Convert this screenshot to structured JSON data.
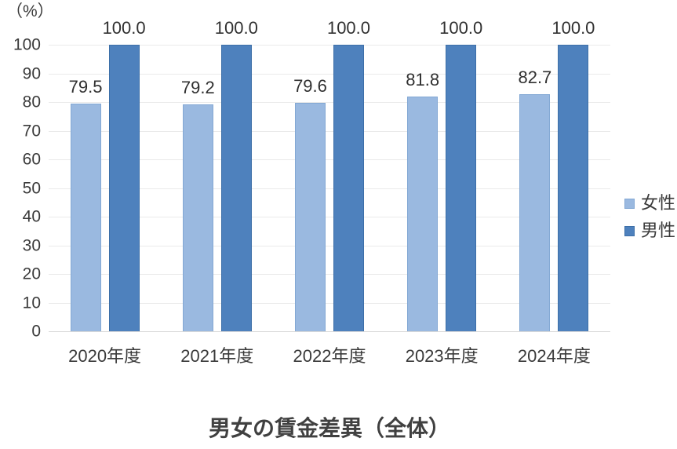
{
  "chart_data": {
    "type": "bar",
    "title": "男女の賃金差異（全体）",
    "unit_label": "（%）",
    "categories": [
      "2020年度",
      "2021年度",
      "2022年度",
      "2023年度",
      "2024年度"
    ],
    "series": [
      {
        "name": "女性",
        "color": "#9ab9e0",
        "border_color": "#83a8d4",
        "values": [
          79.5,
          79.2,
          79.6,
          81.8,
          82.7
        ],
        "value_labels": [
          "79.5",
          "79.2",
          "79.6",
          "81.8",
          "82.7"
        ]
      },
      {
        "name": "男性",
        "color": "#4e81bd",
        "border_color": "#3d6fa8",
        "values": [
          100.0,
          100.0,
          100.0,
          100.0,
          100.0
        ],
        "value_labels": [
          "100.0",
          "100.0",
          "100.0",
          "100.0",
          "100.0"
        ]
      }
    ],
    "ylim": [
      0,
      100
    ],
    "yticks": [
      0,
      10,
      20,
      30,
      40,
      50,
      60,
      70,
      80,
      90,
      100
    ],
    "grid": true,
    "legend_position": "right",
    "gridline_color": "#eaeaea",
    "axis_line_color": "#d9d9d9"
  }
}
